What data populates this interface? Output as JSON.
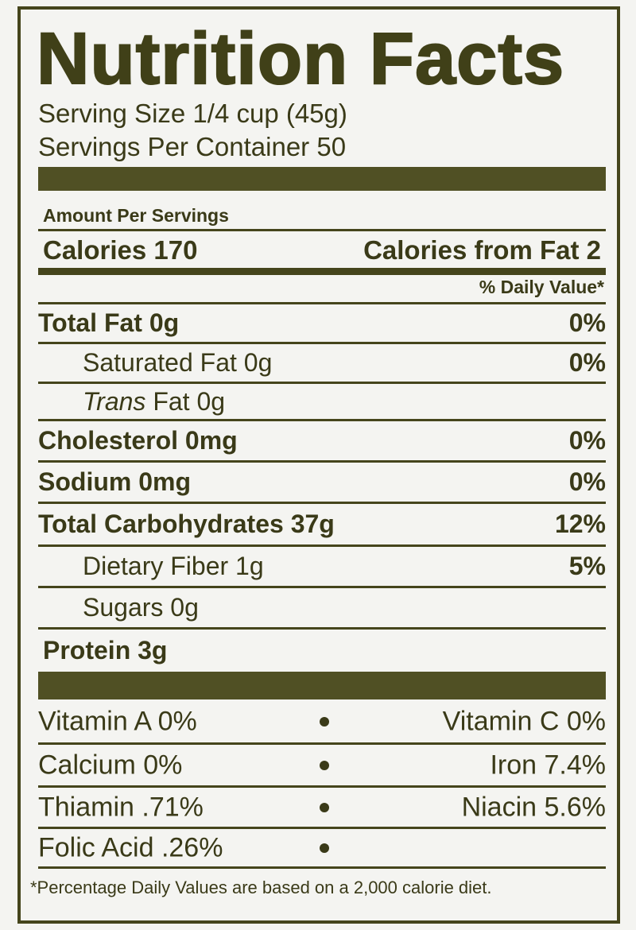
{
  "title": "Nutrition Facts",
  "serving_size": "Serving Size 1/4 cup (45g)",
  "servings_per_container": "Servings Per Container 50",
  "amount_per": "Amount Per Servings",
  "calories": "Calories 170",
  "calories_from_fat": "Calories from Fat 2",
  "daily_value_header": "% Daily Value*",
  "nutrients": [
    {
      "label": "Total Fat 0g",
      "dv": "0%"
    },
    {
      "label": "Saturated Fat 0g",
      "dv": "0%"
    },
    {
      "label_italic": "Trans",
      "label": "Fat 0g"
    },
    {
      "label": "Cholesterol 0mg",
      "dv": "0%"
    },
    {
      "label": "Sodium 0mg",
      "dv": "0%"
    },
    {
      "label": "Total Carbohydrates 37g",
      "dv": "12%"
    },
    {
      "label": "Dietary Fiber 1g",
      "dv": "5%"
    },
    {
      "label": "Sugars 0g"
    },
    {
      "label": "Protein 3g"
    }
  ],
  "vitamins": [
    {
      "left": "Vitamin A 0%",
      "right": "Vitamin C 0%"
    },
    {
      "left": "Calcium 0%",
      "right": "Iron 7.4%"
    },
    {
      "left": "Thiamin .71%",
      "right": "Niacin 5.6%"
    },
    {
      "left": "Folic Acid .26%"
    }
  ],
  "footnote": "*Percentage Daily Values are based on a 2,000 calorie diet."
}
